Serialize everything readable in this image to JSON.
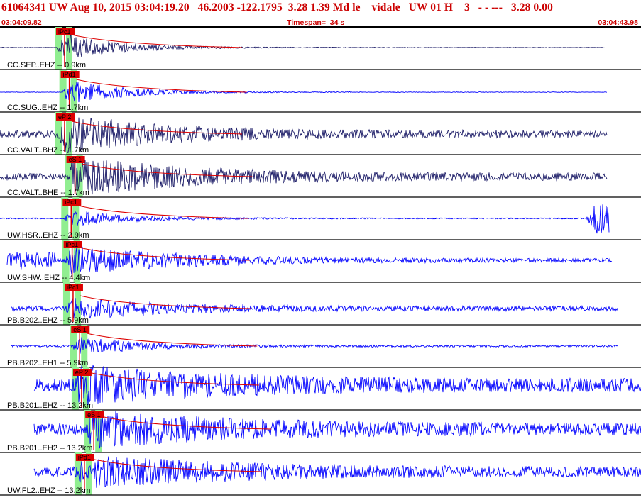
{
  "header": {
    "title": "61064341 UW Aug 10, 2015 03:04:19.20   46.2003 -122.1795  3.28 1.39 Md le    vidale   UW 01 H    3   - - ---   3.28 0.00",
    "start_time": "03:04:09.82",
    "timespan": "Timespan=  34 s",
    "end_time": "03:04:43.98"
  },
  "colors": {
    "title": "#cc0000",
    "trace_blue": "#0000ff",
    "trace_dark": "#1a1a66",
    "pick_red": "#dd0000",
    "window_green": "#90ee90"
  },
  "channels": [
    {
      "label": "CC.SEP..EHZ -- 0.9km",
      "color": "dark",
      "picks": [
        {
          "text": "iPc1",
          "t": 3.05
        }
      ]
    },
    {
      "label": "CC.SUG..EHZ -- 1.7km",
      "color": "blue",
      "picks": [
        {
          "text": "iPd1",
          "t": 3.3
        }
      ]
    },
    {
      "label": "CC.VALT..BHZ -- 1.7km",
      "color": "dark",
      "picks": [
        {
          "text": "eP 2",
          "t": 3.05
        }
      ]
    },
    {
      "label": "CC.VALT..BHE -- 1.7km",
      "color": "dark",
      "picks": [
        {
          "text": "eS 1",
          "t": 3.6
        }
      ]
    },
    {
      "label": "UW.HSR..EHZ -- 2.9km",
      "color": "blue",
      "picks": [
        {
          "text": "iPc1",
          "t": 3.4
        }
      ]
    },
    {
      "label": "UW.SHW..EHZ -- 4.4km",
      "color": "blue",
      "picks": [
        {
          "text": "iPc1",
          "t": 3.45
        }
      ]
    },
    {
      "label": "PB.B202..EHZ -- 5.9km",
      "color": "blue",
      "picks": [
        {
          "text": "iPc1",
          "t": 3.5
        }
      ]
    },
    {
      "label": "PB.B202..EH1 -- 5.9km",
      "color": "blue",
      "picks": [
        {
          "text": "eS 1",
          "t": 3.85
        }
      ]
    },
    {
      "label": "PB.B201..EHZ -- 13.2km",
      "color": "blue",
      "picks": [
        {
          "text": "eP 2",
          "t": 3.95
        }
      ]
    },
    {
      "label": "PB.B201..EH2 -- 13.2km",
      "color": "blue",
      "picks": [
        {
          "text": "eS 1",
          "t": 4.6
        }
      ]
    },
    {
      "label": "UW.FL2..EHZ -- 13.2km",
      "color": "blue",
      "picks": [
        {
          "text": "iPd1",
          "t": 4.1
        }
      ]
    }
  ]
}
